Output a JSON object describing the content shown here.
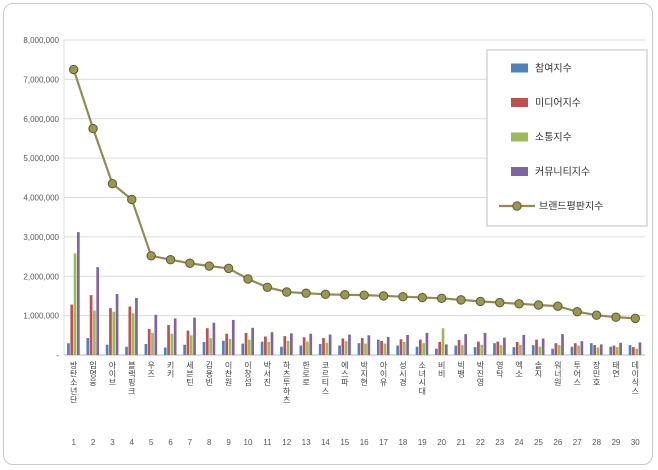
{
  "page": {
    "background_color": "#ffffff",
    "card_border_color": "#c9c9c9"
  },
  "chart_data": {
    "type": "bar",
    "combo_with_line": true,
    "title": "",
    "grid": true,
    "categories": [
      "방탄소년단",
      "임영웅",
      "아이브",
      "블랙핑크",
      "우즈",
      "키키",
      "세븐틴",
      "김용빈",
      "이찬원",
      "이창섭",
      "박서진",
      "하츠투하츠",
      "한로로",
      "코르티스",
      "에스파",
      "박지현",
      "아이유",
      "성시경",
      "소녀시대",
      "비비",
      "빅뱅",
      "박진영",
      "영탁",
      "엑소",
      "솔지",
      "워너원",
      "투어스",
      "장민호",
      "태연",
      "데이식스"
    ],
    "ranks": [
      "1",
      "2",
      "3",
      "4",
      "5",
      "6",
      "7",
      "8",
      "9",
      "10",
      "11",
      "12",
      "13",
      "14",
      "15",
      "16",
      "17",
      "18",
      "19",
      "20",
      "21",
      "22",
      "23",
      "24",
      "25",
      "26",
      "27",
      "28",
      "29",
      "30"
    ],
    "series": [
      {
        "name": "참여지수",
        "type": "bar",
        "color": "#4F81BD",
        "values": [
          300000,
          430000,
          260000,
          210000,
          280000,
          190000,
          260000,
          330000,
          360000,
          290000,
          340000,
          210000,
          240000,
          280000,
          240000,
          300000,
          390000,
          240000,
          210000,
          160000,
          240000,
          200000,
          300000,
          200000,
          250000,
          160000,
          210000,
          300000,
          210000,
          250000
        ]
      },
      {
        "name": "미디어지수",
        "type": "bar",
        "color": "#C0504D",
        "values": [
          1280000,
          1520000,
          1190000,
          1230000,
          660000,
          760000,
          620000,
          680000,
          540000,
          560000,
          470000,
          480000,
          450000,
          430000,
          420000,
          430000,
          360000,
          400000,
          390000,
          330000,
          380000,
          340000,
          340000,
          330000,
          390000,
          300000,
          300000,
          250000,
          240000,
          200000
        ]
      },
      {
        "name": "소통지수",
        "type": "bar",
        "color": "#9BBB59",
        "values": [
          2580000,
          1130000,
          1100000,
          1060000,
          560000,
          540000,
          500000,
          430000,
          410000,
          390000,
          330000,
          360000,
          340000,
          310000,
          350000,
          290000,
          290000,
          330000,
          300000,
          680000,
          250000,
          260000,
          250000,
          260000,
          210000,
          250000,
          240000,
          190000,
          200000,
          160000
        ]
      },
      {
        "name": "커뮤니티지수",
        "type": "bar",
        "color": "#8064A2",
        "values": [
          3120000,
          2230000,
          1550000,
          1450000,
          1020000,
          930000,
          950000,
          820000,
          890000,
          690000,
          580000,
          550000,
          540000,
          520000,
          520000,
          500000,
          460000,
          510000,
          560000,
          270000,
          530000,
          560000,
          440000,
          510000,
          420000,
          530000,
          350000,
          270000,
          310000,
          320000
        ]
      },
      {
        "name": "브랜드평판지수",
        "type": "line",
        "color": "#948A54",
        "marker_fill": "#9C9653",
        "marker_stroke": "#5F5C2E",
        "values": [
          7250000,
          5750000,
          4350000,
          3950000,
          2520000,
          2420000,
          2330000,
          2260000,
          2200000,
          1930000,
          1720000,
          1600000,
          1570000,
          1540000,
          1530000,
          1520000,
          1500000,
          1480000,
          1460000,
          1440000,
          1400000,
          1360000,
          1330000,
          1300000,
          1270000,
          1240000,
          1100000,
          1010000,
          960000,
          930000
        ]
      }
    ],
    "y_axis": {
      "min": 0,
      "max": 8000000,
      "step": 1000000,
      "tick_labels": [
        "-",
        "1,000,000",
        "2,000,000",
        "3,000,000",
        "4,000,000",
        "5,000,000",
        "6,000,000",
        "7,000,000",
        "8,000,000"
      ]
    },
    "legend": {
      "position": "top-right",
      "entries": [
        "참여지수",
        "미디어지수",
        "소통지수",
        "커뮤니티지수",
        "브랜드평판지수"
      ]
    }
  }
}
